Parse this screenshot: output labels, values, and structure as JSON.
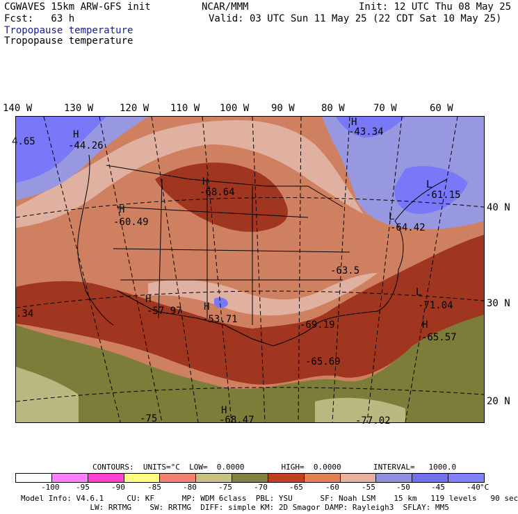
{
  "header": {
    "left1": "CGWAVES 15km ARW-GFS init",
    "left2": "Fcst:   63 h",
    "field_blue": "Tropopause temperature",
    "field_black": "Tropopause temperature",
    "center": "NCAR/MMM",
    "init": "Init: 12 UTC Thu 08 May 25",
    "valid": "Valid: 03 UTC Sun 11 May 25 (22 CDT Sat 10 May 25)"
  },
  "map": {
    "lon_labels": [
      "140 W",
      "130 W",
      "120 W",
      "110 W",
      "100 W",
      "90 W",
      "80 W",
      "70 W",
      "60 W"
    ],
    "lat_labels": [
      "40 N",
      "30 N",
      "20 N"
    ],
    "value_labels": [
      {
        "text": "4.65"
      },
      {
        "text": "-44.26"
      },
      {
        "text": "-43.34"
      },
      {
        "text": "-68.64"
      },
      {
        "text": "-61.15"
      },
      {
        "text": "-60.49"
      },
      {
        "text": "-64.42"
      },
      {
        "text": "-63.5"
      },
      {
        "text": "-71.04"
      },
      {
        "text": "-57.97"
      },
      {
        "text": "-53.71"
      },
      {
        "text": "-69.19"
      },
      {
        "text": "-65.57"
      },
      {
        "text": "-65.69"
      },
      {
        "text": ".34"
      },
      {
        "text": "-75"
      },
      {
        "text": "-68.47"
      },
      {
        "text": "-77.02"
      }
    ],
    "marker_labels": [
      "H",
      "H",
      "H",
      "H",
      "H",
      "H",
      "H",
      "L",
      "L",
      "L",
      "H"
    ]
  },
  "footer": {
    "contours": "CONTOURS:  UNITS=°C  LOW=  0.0000        HIGH=  0.0000       INTERVAL=   1000.0",
    "model_line1": "Model Info: V4.6.1     CU: KF      MP: WDM 6class  PBL: YSU      SF: Noah LSM    15 km   119 levels   90 sec",
    "model_line2": "               LW: RRTMG    SW: RRTMG  DIFF: simple KM: 2D Smagor DAMP: Rayleigh3  SFLAY: MM5"
  },
  "colorbar": {
    "colors": [
      "#ffffff",
      "#ff80ff",
      "#ff40d0",
      "#ffff80",
      "#f08070",
      "#c8c080",
      "#808040",
      "#c04020",
      "#a03020",
      "#e08050",
      "#e8b0a0",
      "#9090e0",
      "#7070f0",
      "#8080ff"
    ],
    "tick_labels": [
      "-100",
      "-95",
      "-90",
      "-85",
      "-80",
      "-75",
      "-70",
      "-65",
      "-60",
      "-55",
      "-50",
      "-45",
      "-40",
      "°C"
    ]
  },
  "colors": {
    "deep_orange": "#cf8060",
    "dark_red": "#a03520",
    "light_salmon": "#e0b0a0",
    "lavender": "#9898e0",
    "blue": "#7878f8",
    "olive": "#7d7d3a",
    "khaki": "#b8b880"
  }
}
